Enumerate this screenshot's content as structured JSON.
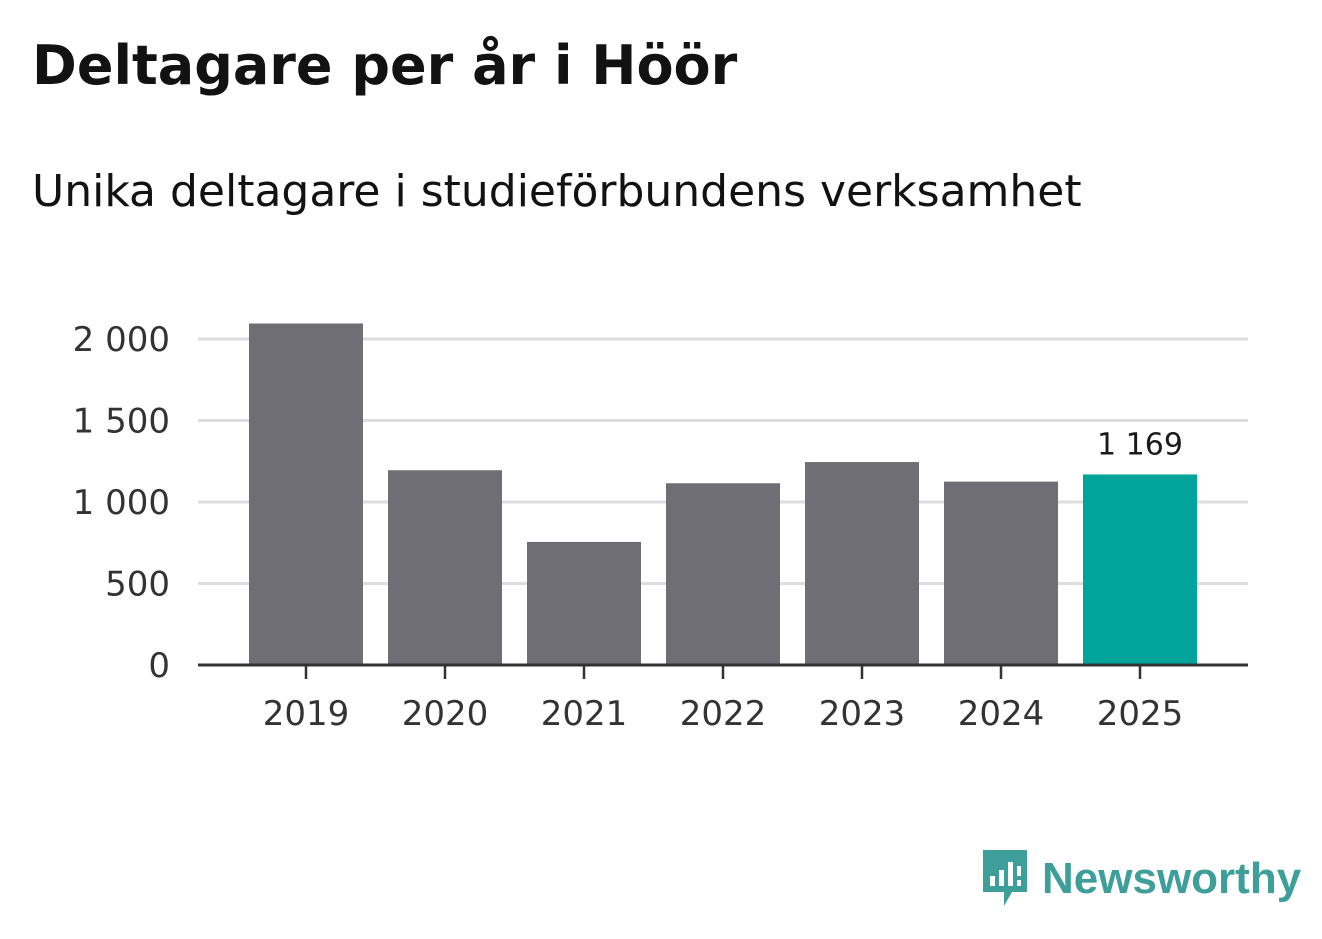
{
  "chart_data": {
    "type": "bar",
    "title": "Deltagare per år i Höör",
    "subtitle": "Unika deltagare i studieförbundens verksamhet",
    "categories": [
      "2019",
      "2020",
      "2021",
      "2022",
      "2023",
      "2024",
      "2025"
    ],
    "values": [
      2095,
      1195,
      755,
      1115,
      1245,
      1125,
      1169
    ],
    "highlight_index": 6,
    "highlight_label": "1 169",
    "yticks": [
      0,
      500,
      1000,
      1500,
      2000
    ],
    "ytick_labels": [
      "0",
      "500",
      "1 000",
      "1 500",
      "2 000"
    ],
    "ylim": [
      0,
      2000
    ],
    "xlabel": "",
    "ylabel": "",
    "grid": true,
    "colors": {
      "bar": "#6f6e74",
      "highlight": "#00a49a",
      "grid": "#dedede",
      "axis": "#333333",
      "text": "#333333"
    }
  },
  "brand": {
    "name": "Newsworthy",
    "icon": "newsworthy-logo-icon",
    "color": "#3e9f9a"
  }
}
